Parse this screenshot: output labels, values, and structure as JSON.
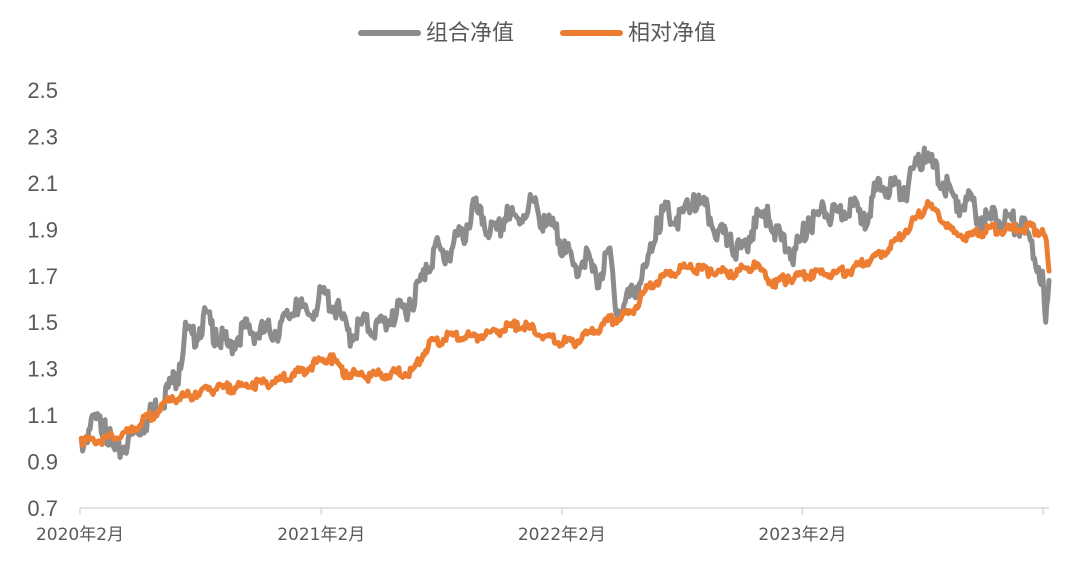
{
  "chart_data": {
    "type": "line",
    "title": "",
    "xlabel": "",
    "ylabel": "",
    "ylim": [
      0.7,
      2.5
    ],
    "y_ticks": [
      "0.7",
      "0.9",
      "1.1",
      "1.3",
      "1.5",
      "1.7",
      "1.9",
      "2.1",
      "2.3",
      "2.5"
    ],
    "x_ticks": [
      "2020年2月",
      "2021年2月",
      "2022年2月",
      "2023年2月"
    ],
    "x_range": [
      "2020-02",
      "2024-02"
    ],
    "grid": false,
    "legend_position": "top-center",
    "series": [
      {
        "name": "组合净值",
        "color": "#8c8c8c",
        "points": [
          [
            "2020-02-03",
            1.0
          ],
          [
            "2020-02-20",
            1.1
          ],
          [
            "2020-03-10",
            1.08
          ],
          [
            "2020-03-25",
            0.95
          ],
          [
            "2020-04-15",
            1.02
          ],
          [
            "2020-05-10",
            1.1
          ],
          [
            "2020-06-10",
            1.22
          ],
          [
            "2020-07-01",
            1.32
          ],
          [
            "2020-07-10",
            1.5
          ],
          [
            "2020-07-20",
            1.45
          ],
          [
            "2020-08-10",
            1.55
          ],
          [
            "2020-08-25",
            1.47
          ],
          [
            "2020-09-15",
            1.42
          ],
          [
            "2020-10-05",
            1.5
          ],
          [
            "2020-11-01",
            1.48
          ],
          [
            "2020-12-01",
            1.5
          ],
          [
            "2020-12-25",
            1.6
          ],
          [
            "2021-01-10",
            1.55
          ],
          [
            "2021-02-05",
            1.65
          ],
          [
            "2021-02-25",
            1.58
          ],
          [
            "2021-03-15",
            1.47
          ],
          [
            "2021-04-05",
            1.52
          ],
          [
            "2021-04-25",
            1.5
          ],
          [
            "2021-05-20",
            1.55
          ],
          [
            "2021-06-15",
            1.6
          ],
          [
            "2021-07-10",
            1.75
          ],
          [
            "2021-07-25",
            1.85
          ],
          [
            "2021-08-10",
            1.8
          ],
          [
            "2021-08-25",
            1.88
          ],
          [
            "2021-09-10",
            1.92
          ],
          [
            "2021-09-20",
            2.03
          ],
          [
            "2021-10-05",
            1.95
          ],
          [
            "2021-10-25",
            1.9
          ],
          [
            "2021-11-10",
            2.0
          ],
          [
            "2021-11-25",
            1.95
          ],
          [
            "2021-12-15",
            2.05
          ],
          [
            "2022-01-05",
            1.96
          ],
          [
            "2022-01-20",
            1.92
          ],
          [
            "2022-02-05",
            1.85
          ],
          [
            "2022-02-20",
            1.75
          ],
          [
            "2022-03-10",
            1.82
          ],
          [
            "2022-03-25",
            1.7
          ],
          [
            "2022-04-15",
            1.82
          ],
          [
            "2022-04-27",
            1.55
          ],
          [
            "2022-05-10",
            1.62
          ],
          [
            "2022-06-10",
            1.75
          ],
          [
            "2022-06-25",
            1.95
          ],
          [
            "2022-07-10",
            2.0
          ],
          [
            "2022-07-25",
            1.95
          ],
          [
            "2022-08-20",
            2.05
          ],
          [
            "2022-09-10",
            2.0
          ],
          [
            "2022-09-28",
            1.9
          ],
          [
            "2022-10-15",
            1.88
          ],
          [
            "2022-10-31",
            1.82
          ],
          [
            "2022-11-20",
            1.95
          ],
          [
            "2022-12-10",
            2.0
          ],
          [
            "2022-12-25",
            1.9
          ],
          [
            "2023-01-20",
            1.82
          ],
          [
            "2023-02-10",
            1.95
          ],
          [
            "2023-03-05",
            2.0
          ],
          [
            "2023-03-25",
            1.98
          ],
          [
            "2023-04-15",
            2.03
          ],
          [
            "2023-05-05",
            1.97
          ],
          [
            "2023-05-25",
            2.1
          ],
          [
            "2023-06-15",
            2.12
          ],
          [
            "2023-07-05",
            2.08
          ],
          [
            "2023-07-25",
            2.2
          ],
          [
            "2023-08-05",
            2.25
          ],
          [
            "2023-08-20",
            2.18
          ],
          [
            "2023-09-10",
            2.1
          ],
          [
            "2023-09-25",
            2.02
          ],
          [
            "2023-10-15",
            2.05
          ],
          [
            "2023-10-31",
            1.95
          ],
          [
            "2023-11-20",
            1.98
          ],
          [
            "2023-12-10",
            1.96
          ],
          [
            "2023-12-31",
            1.95
          ],
          [
            "2024-01-15",
            1.85
          ],
          [
            "2024-01-31",
            1.72
          ],
          [
            "2024-02-05",
            1.5
          ],
          [
            "2024-02-08",
            1.6
          ],
          [
            "2024-02-10",
            1.68
          ]
        ]
      },
      {
        "name": "相对净值",
        "color": "#ed7d31",
        "points": [
          [
            "2020-02-03",
            1.0
          ],
          [
            "2020-03-15",
            1.01
          ],
          [
            "2020-04-10",
            1.03
          ],
          [
            "2020-05-15",
            1.1
          ],
          [
            "2020-06-20",
            1.18
          ],
          [
            "2020-07-25",
            1.2
          ],
          [
            "2020-08-15",
            1.22
          ],
          [
            "2020-09-15",
            1.23
          ],
          [
            "2020-10-20",
            1.24
          ],
          [
            "2020-11-25",
            1.26
          ],
          [
            "2020-12-20",
            1.28
          ],
          [
            "2021-01-20",
            1.33
          ],
          [
            "2021-02-15",
            1.36
          ],
          [
            "2021-03-10",
            1.29
          ],
          [
            "2021-04-15",
            1.28
          ],
          [
            "2021-05-20",
            1.29
          ],
          [
            "2021-06-20",
            1.3
          ],
          [
            "2021-07-15",
            1.42
          ],
          [
            "2021-08-15",
            1.45
          ],
          [
            "2021-09-20",
            1.45
          ],
          [
            "2021-10-20",
            1.47
          ],
          [
            "2021-11-25",
            1.5
          ],
          [
            "2021-12-20",
            1.48
          ],
          [
            "2022-01-15",
            1.44
          ],
          [
            "2022-02-15",
            1.42
          ],
          [
            "2022-03-15",
            1.46
          ],
          [
            "2022-04-15",
            1.52
          ],
          [
            "2022-05-15",
            1.55
          ],
          [
            "2022-06-15",
            1.67
          ],
          [
            "2022-07-15",
            1.72
          ],
          [
            "2022-08-15",
            1.75
          ],
          [
            "2022-09-15",
            1.73
          ],
          [
            "2022-10-15",
            1.72
          ],
          [
            "2022-11-20",
            1.76
          ],
          [
            "2022-12-20",
            1.68
          ],
          [
            "2023-01-10",
            1.7
          ],
          [
            "2023-02-15",
            1.72
          ],
          [
            "2023-03-20",
            1.72
          ],
          [
            "2023-04-20",
            1.74
          ],
          [
            "2023-05-20",
            1.79
          ],
          [
            "2023-06-20",
            1.85
          ],
          [
            "2023-07-20",
            1.95
          ],
          [
            "2023-08-10",
            2.02
          ],
          [
            "2023-08-25",
            1.98
          ],
          [
            "2023-09-15",
            1.9
          ],
          [
            "2023-10-15",
            1.88
          ],
          [
            "2023-11-10",
            1.91
          ],
          [
            "2023-12-15",
            1.91
          ],
          [
            "2024-01-10",
            1.92
          ],
          [
            "2024-01-31",
            1.9
          ],
          [
            "2024-02-06",
            1.85
          ],
          [
            "2024-02-10",
            1.72
          ]
        ]
      }
    ]
  }
}
